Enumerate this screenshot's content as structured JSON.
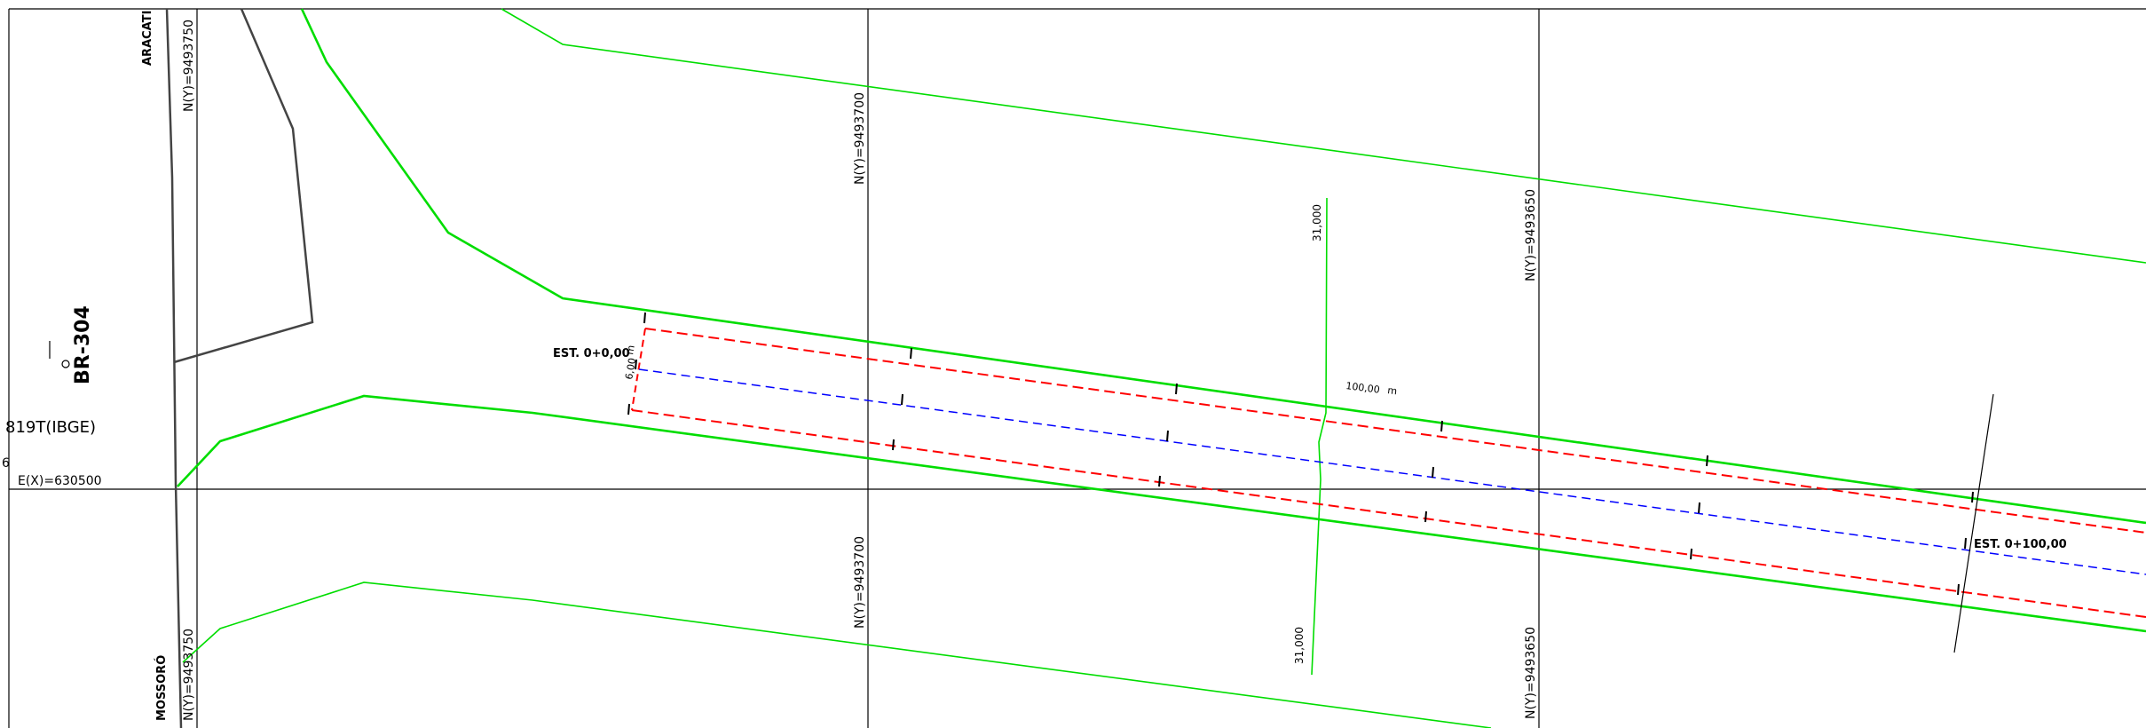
{
  "drawing": {
    "road_name": "BR-304",
    "direction_north": "ARACATI",
    "direction_south": "MOSSORÓ",
    "ibge_reference": "819T(IBGE)",
    "ibge_fragment": "6",
    "easting_label": "E(X)=630500",
    "northing_labels": {
      "n9493750_top": "N(Y)=9493750",
      "n9493750_bottom": "N(Y)=9493750",
      "n9493700_top": "N(Y)=9493700",
      "n9493700_bottom": "N(Y)=9493700",
      "n9493650_top": "N(Y)=9493650",
      "n9493650_bottom": "N(Y)=9493650"
    },
    "station_start": "EST. 0+0,00",
    "station_end": "EST. 0+100,00",
    "width_label": "6,00",
    "width_unit": "m",
    "length_label": "100,00",
    "length_unit": "m",
    "contour_top": "31,000",
    "contour_bottom": "31,000"
  },
  "colors": {
    "grid": "#000000",
    "road_edge": "#00dd00",
    "offset_line": "#ff0000",
    "centerline": "#0000ff",
    "road_outline": "#444444"
  }
}
